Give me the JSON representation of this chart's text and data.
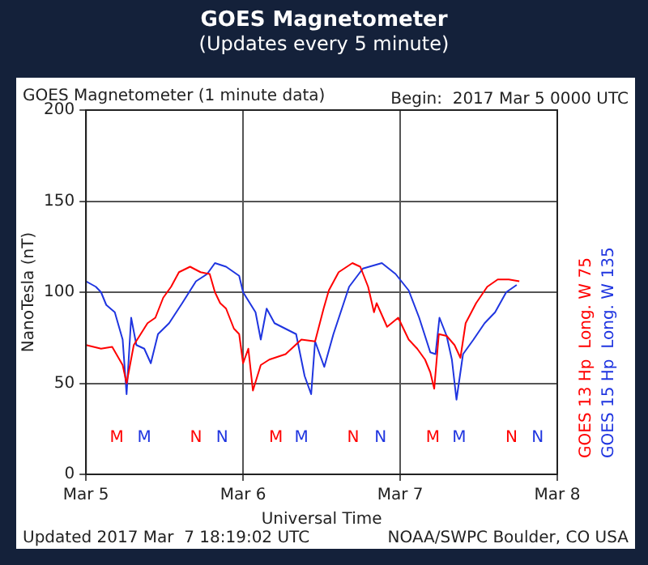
{
  "chart_data": {
    "type": "line",
    "title": "GOES Magnetometer",
    "subtitle": "(Updates every 5 minute)",
    "xlabel": "Universal Time",
    "ylabel": "NanoTesla (nT)",
    "xlim": [
      "2017-03-05",
      "2017-03-08"
    ],
    "xticks": [
      {
        "value": "2017-03-05",
        "label": "Mar 5"
      },
      {
        "value": "2017-03-06",
        "label": "Mar 6"
      },
      {
        "value": "2017-03-07",
        "label": "Mar 7"
      },
      {
        "value": "2017-03-08",
        "label": "Mar 8"
      }
    ],
    "ylim": [
      0,
      200
    ],
    "yticks": [
      0,
      50,
      100,
      150,
      200
    ],
    "grid": true,
    "legend": false,
    "marker": "none",
    "line_style": "solid",
    "series": [
      {
        "name": "GOES 13 Hp  Long. W 75",
        "color": "#ff0000",
        "x": [
          "2017-03-05T00:00",
          "2017-03-05T02:18",
          "2017-03-05T04:00",
          "2017-03-05T05:36",
          "2017-03-05T06:12",
          "2017-03-05T07:18",
          "2017-03-05T09:24",
          "2017-03-05T10:36",
          "2017-03-05T11:48",
          "2017-03-05T13:00",
          "2017-03-05T14:12",
          "2017-03-05T15:54",
          "2017-03-05T17:30",
          "2017-03-05T18:54",
          "2017-03-05T19:42",
          "2017-03-05T20:30",
          "2017-03-05T21:24",
          "2017-03-05T22:36",
          "2017-03-05T23:24",
          "2017-03-06T00:00",
          "2017-03-06T00:48",
          "2017-03-06T01:30",
          "2017-03-06T02:42",
          "2017-03-06T04:00",
          "2017-03-06T06:30",
          "2017-03-06T08:54",
          "2017-03-06T11:00",
          "2017-03-06T12:18",
          "2017-03-06T13:06",
          "2017-03-06T14:36",
          "2017-03-06T16:42",
          "2017-03-06T17:54",
          "2017-03-06T19:06",
          "2017-03-06T20:00",
          "2017-03-06T20:24",
          "2017-03-06T22:00",
          "2017-03-06T23:42",
          "2017-03-07T01:18",
          "2017-03-07T02:36",
          "2017-03-07T03:48",
          "2017-03-07T04:36",
          "2017-03-07T05:12",
          "2017-03-07T05:54",
          "2017-03-07T07:06",
          "2017-03-07T08:18",
          "2017-03-07T09:12",
          "2017-03-07T10:00",
          "2017-03-07T11:36",
          "2017-03-07T13:18",
          "2017-03-07T14:54",
          "2017-03-07T16:36",
          "2017-03-07T18:12"
        ],
        "values": [
          71,
          69,
          70,
          60,
          50,
          71,
          83,
          86,
          97,
          103,
          111,
          114,
          111,
          110,
          100,
          94,
          91,
          80,
          77,
          61,
          69,
          46,
          60,
          63,
          66,
          74,
          73,
          91,
          101,
          111,
          116,
          114,
          103,
          89,
          94,
          81,
          86,
          74,
          69,
          63,
          56,
          47,
          77,
          76,
          71,
          64,
          83,
          94,
          103,
          107,
          107,
          106
        ]
      },
      {
        "name": "GOES 15 Hp  Long. W 135",
        "color": "#1f35e0",
        "x": [
          "2017-03-05T00:00",
          "2017-03-05T01:30",
          "2017-03-05T02:18",
          "2017-03-05T03:06",
          "2017-03-05T04:24",
          "2017-03-05T05:36",
          "2017-03-05T06:12",
          "2017-03-05T06:54",
          "2017-03-05T07:42",
          "2017-03-05T08:54",
          "2017-03-05T09:54",
          "2017-03-05T11:00",
          "2017-03-05T12:42",
          "2017-03-05T14:42",
          "2017-03-05T16:48",
          "2017-03-05T18:30",
          "2017-03-05T19:42",
          "2017-03-05T21:24",
          "2017-03-05T23:24",
          "2017-03-06T00:00",
          "2017-03-06T01:54",
          "2017-03-06T02:42",
          "2017-03-06T03:36",
          "2017-03-06T04:48",
          "2017-03-06T08:06",
          "2017-03-06T09:24",
          "2017-03-06T10:24",
          "2017-03-06T11:00",
          "2017-03-06T12:24",
          "2017-03-06T13:48",
          "2017-03-06T16:12",
          "2017-03-06T18:18",
          "2017-03-06T21:12",
          "2017-03-06T23:18",
          "2017-03-07T01:18",
          "2017-03-07T02:54",
          "2017-03-07T04:36",
          "2017-03-07T05:24",
          "2017-03-07T06:00",
          "2017-03-07T07:06",
          "2017-03-07T07:54",
          "2017-03-07T08:36",
          "2017-03-07T09:36",
          "2017-03-07T11:12",
          "2017-03-07T12:54",
          "2017-03-07T14:30",
          "2017-03-07T16:12",
          "2017-03-07T17:48"
        ],
        "values": [
          106,
          103,
          100,
          93,
          89,
          74,
          44,
          86,
          71,
          69,
          61,
          77,
          83,
          94,
          106,
          110,
          116,
          114,
          109,
          100,
          89,
          74,
          91,
          83,
          77,
          54,
          44,
          73,
          59,
          77,
          103,
          113,
          116,
          110,
          101,
          86,
          67,
          66,
          86,
          76,
          63,
          41,
          66,
          74,
          83,
          89,
          100,
          104
        ]
      }
    ],
    "annotations": [
      "GOES Magnetometer (1 minute data)",
      "Begin:  2017 Mar 5 0000 UTC",
      "Updated 2017 Mar  7 18:19:02 UTC",
      "NOAA/SWPC Boulder, CO USA",
      "M",
      "M",
      "N",
      "N",
      "M",
      "M",
      "N",
      "N",
      "M",
      "M",
      "N",
      "N"
    ]
  }
}
